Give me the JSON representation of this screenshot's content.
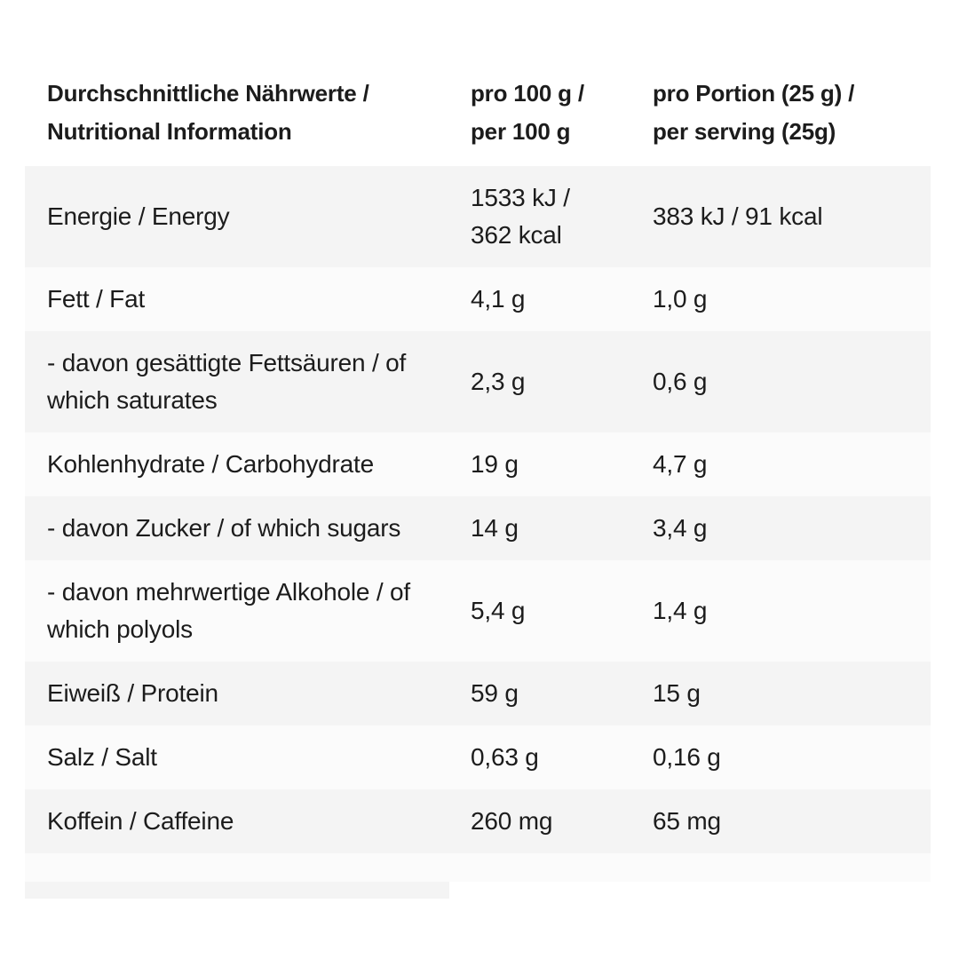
{
  "table": {
    "colors": {
      "row_shaded": "#f4f4f4",
      "row_light": "#fbfbfb",
      "text": "#1c1c1c",
      "page_background": "#ffffff"
    },
    "header": {
      "nutrient_column": "Durchschnittliche Nährwerte /\nNutritional Information",
      "per_100g_column": "pro 100 g /\nper 100 g",
      "per_serving_column": "pro Portion (25 g) /\nper serving (25g)"
    },
    "rows": [
      {
        "label": "Energie / Energy",
        "per_100g": "1533 kJ /\n362 kcal",
        "per_serving": "383 kJ / 91 kcal"
      },
      {
        "label": "Fett / Fat",
        "per_100g": "4,1 g",
        "per_serving": "1,0 g"
      },
      {
        "label": "- davon gesättigte Fettsäuren / of\nwhich saturates",
        "per_100g": "2,3 g",
        "per_serving": "0,6 g"
      },
      {
        "label": "Kohlenhydrate / Carbohydrate",
        "per_100g": "19 g",
        "per_serving": "4,7 g"
      },
      {
        "label": "- davon Zucker / of which sugars",
        "per_100g": "14 g",
        "per_serving": "3,4 g"
      },
      {
        "label": "- davon mehrwertige Alkohole / of\nwhich polyols",
        "per_100g": "5,4 g",
        "per_serving": "1,4 g"
      },
      {
        "label": "Eiweiß / Protein",
        "per_100g": "59 g",
        "per_serving": "15 g"
      },
      {
        "label": "Salz / Salt",
        "per_100g": "0,63 g",
        "per_serving": "0,16 g"
      },
      {
        "label": "Koffein / Caffeine",
        "per_100g": "260 mg",
        "per_serving": "65 mg"
      }
    ]
  }
}
